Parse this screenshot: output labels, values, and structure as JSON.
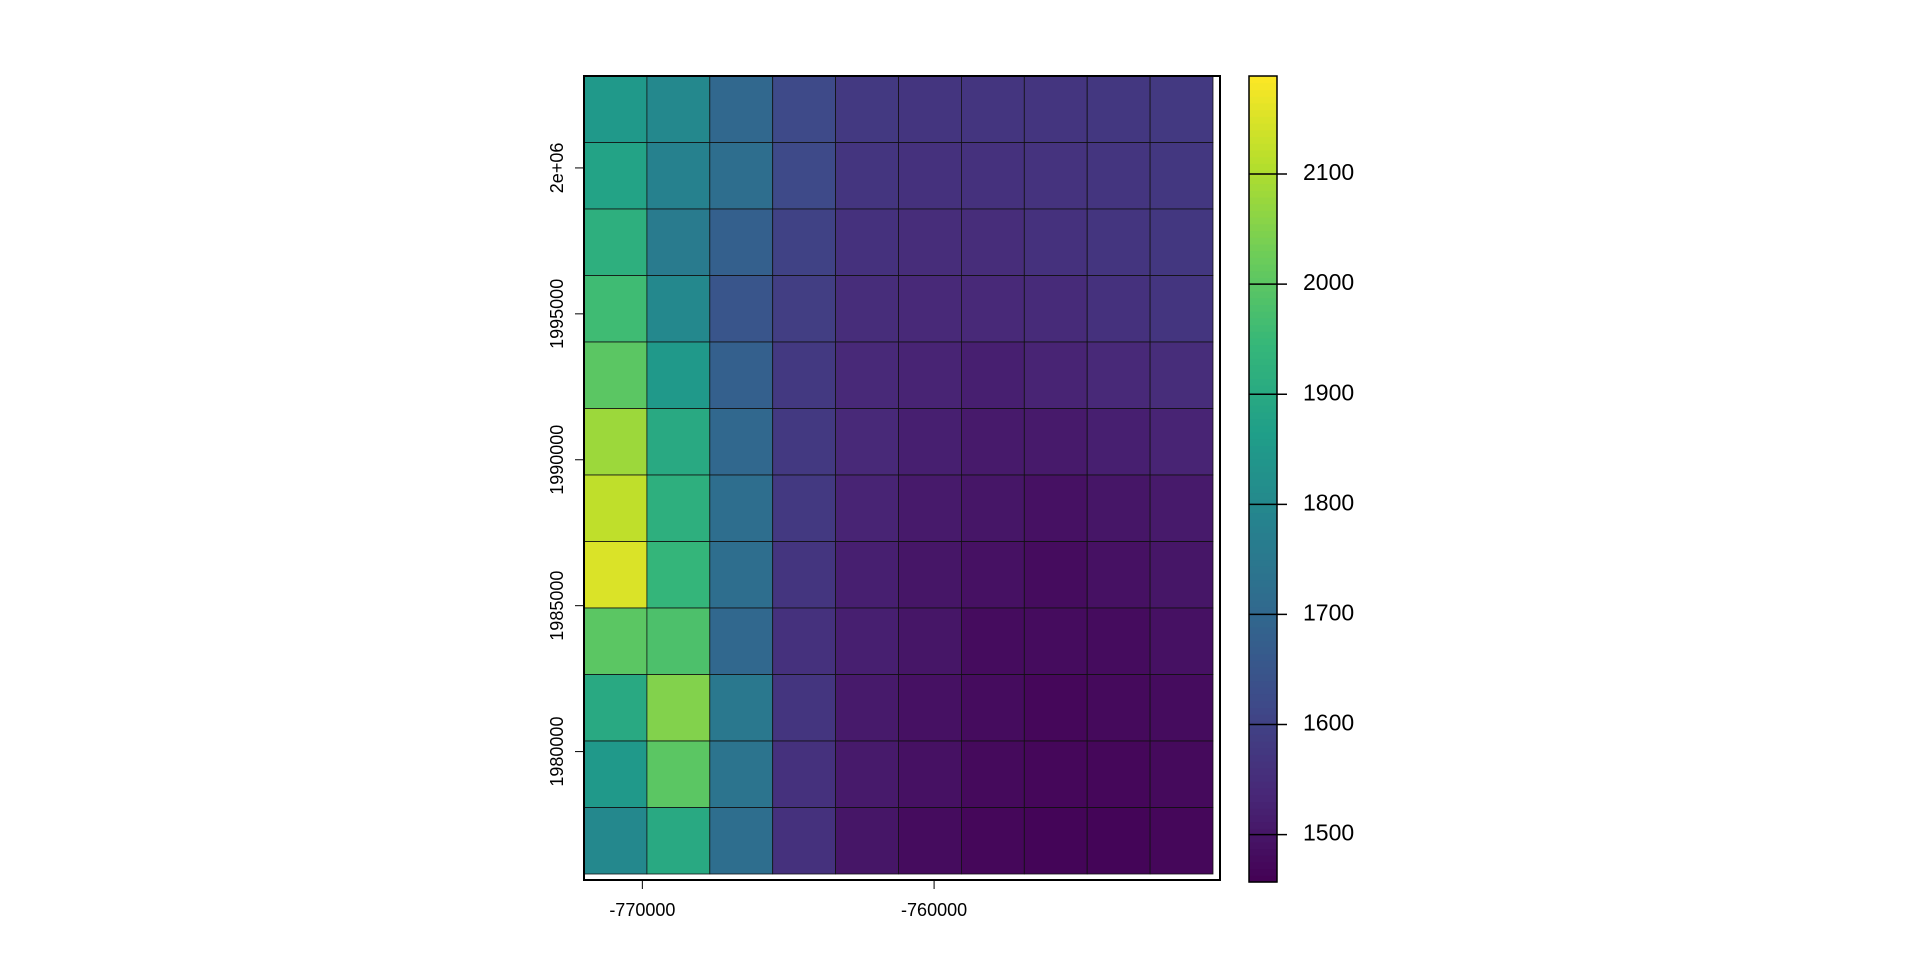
{
  "chart_data": {
    "type": "raster",
    "xlim": [
      -772000,
      -750200
    ],
    "xticks": [
      -770000,
      -760000
    ],
    "ylim": [
      1975600,
      2003150
    ],
    "yticks": [
      {
        "value": 2000000,
        "label": "2e+06"
      },
      1995000,
      1990000,
      1985000,
      1980000
    ],
    "colormap": "viridis",
    "z": [
      [
        1850,
        1800,
        1700,
        1620,
        1580,
        1570,
        1570,
        1570,
        1575,
        1580
      ],
      [
        1880,
        1780,
        1720,
        1620,
        1570,
        1560,
        1560,
        1565,
        1570,
        1575
      ],
      [
        1920,
        1760,
        1680,
        1600,
        1560,
        1550,
        1550,
        1560,
        1570,
        1575
      ],
      [
        1960,
        1800,
        1650,
        1590,
        1550,
        1540,
        1540,
        1545,
        1560,
        1570
      ],
      [
        2000,
        1850,
        1680,
        1580,
        1540,
        1530,
        1520,
        1530,
        1540,
        1550
      ],
      [
        2080,
        1900,
        1700,
        1580,
        1540,
        1520,
        1510,
        1510,
        1520,
        1530
      ],
      [
        2120,
        1920,
        1720,
        1580,
        1530,
        1510,
        1500,
        1490,
        1500,
        1510
      ],
      [
        2150,
        1940,
        1720,
        1570,
        1520,
        1500,
        1490,
        1480,
        1490,
        1500
      ],
      [
        2000,
        1980,
        1700,
        1560,
        1520,
        1500,
        1480,
        1480,
        1480,
        1490
      ],
      [
        1900,
        2050,
        1750,
        1570,
        1510,
        1490,
        1480,
        1470,
        1475,
        1480
      ],
      [
        1850,
        2000,
        1740,
        1560,
        1510,
        1490,
        1475,
        1470,
        1470,
        1475
      ],
      [
        1800,
        1900,
        1720,
        1560,
        1500,
        1480,
        1470,
        1465,
        1465,
        1470
      ]
    ],
    "colorbar": {
      "lim": [
        1457,
        2189
      ],
      "ticks": [
        1500,
        1600,
        1700,
        1800,
        1900,
        2000,
        2100
      ]
    }
  }
}
